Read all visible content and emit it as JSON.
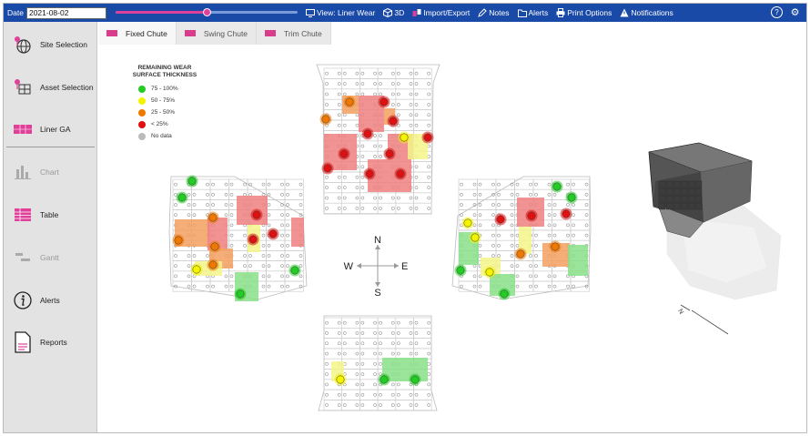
{
  "toolbar": {
    "date_label": "Date",
    "date_value": "2021-08-02",
    "timeline_position": 0.5,
    "view": "View: Liner Wear",
    "view_3d": "3D",
    "import_export": "Import/Export",
    "notes": "Notes",
    "alerts": "Alerts",
    "print_options": "Print Options",
    "notifications": "Notifications",
    "help_symbol": "?",
    "settings_symbol": "⚙"
  },
  "sidebar": {
    "items": [
      {
        "label": "Site Selection",
        "icon": "globe-pin-icon",
        "enabled": true
      },
      {
        "label": "Asset Selection",
        "icon": "asset-pin-icon",
        "enabled": true
      },
      {
        "label": "Liner GA",
        "icon": "liner-ga-icon",
        "enabled": true
      },
      {
        "label": "Chart",
        "icon": "bar-chart-icon",
        "enabled": false
      },
      {
        "label": "Table",
        "icon": "table-icon",
        "enabled": true
      },
      {
        "label": "Gantt",
        "icon": "gantt-icon",
        "enabled": false
      },
      {
        "label": "Alerts",
        "icon": "info-icon",
        "enabled": true
      },
      {
        "label": "Reports",
        "icon": "report-icon",
        "enabled": true
      }
    ]
  },
  "tabs": [
    {
      "label": "Fixed Chute",
      "active": true
    },
    {
      "label": "Swing Chute",
      "active": false
    },
    {
      "label": "Trim Chute",
      "active": false
    }
  ],
  "legend": {
    "title_line1": "REMAINING WEAR",
    "title_line2": "SURFACE THICKNESS",
    "items": [
      {
        "label": "75 - 100%",
        "color": "#22cc22"
      },
      {
        "label": "50 - 75%",
        "color": "#f4f400"
      },
      {
        "label": "25 - 50%",
        "color": "#f07800"
      },
      {
        "label": "< 25%",
        "color": "#e01010"
      },
      {
        "label": "No data",
        "color": "#bbbbbb"
      }
    ]
  },
  "compass": {
    "n": "N",
    "s": "S",
    "e": "E",
    "w": "W"
  },
  "model_3d": {
    "north_label": "N"
  },
  "colors": {
    "topbar": "#1a4aa8",
    "accent": "#e0409a",
    "green": "#22cc22",
    "yellow": "#f4f400",
    "orange": "#f07800",
    "red": "#e01010"
  }
}
